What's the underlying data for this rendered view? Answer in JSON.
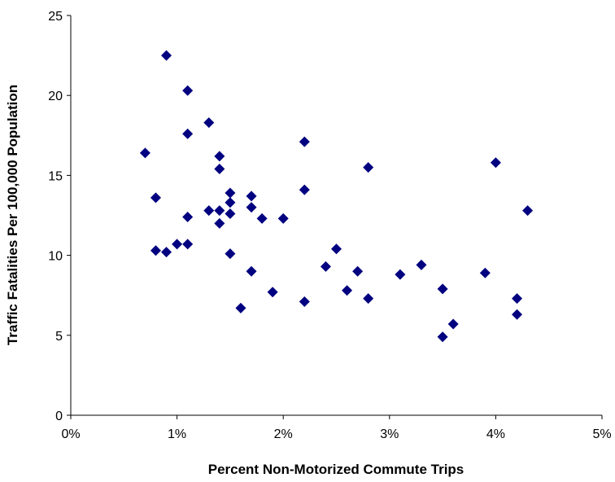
{
  "chart_data": {
    "type": "scatter",
    "title": "",
    "xlabel": "Percent Non-Motorized Commute Trips",
    "ylabel": "Traffic Fatalities Per 100,000 Population",
    "xlim": [
      0,
      5
    ],
    "ylim": [
      0,
      25
    ],
    "x_ticks": [
      "0%",
      "1%",
      "2%",
      "3%",
      "4%",
      "5%"
    ],
    "y_ticks": [
      "0",
      "5",
      "10",
      "15",
      "20",
      "25"
    ],
    "grid": false,
    "legend": "none",
    "marker": "diamond",
    "marker_color": "#000080",
    "series": [
      {
        "points": [
          [
            0.7,
            16.4
          ],
          [
            0.8,
            13.6
          ],
          [
            0.8,
            10.3
          ],
          [
            0.9,
            22.5
          ],
          [
            0.9,
            10.2
          ],
          [
            1.0,
            10.7
          ],
          [
            1.1,
            20.3
          ],
          [
            1.1,
            17.6
          ],
          [
            1.1,
            12.4
          ],
          [
            1.1,
            10.7
          ],
          [
            1.3,
            18.3
          ],
          [
            1.3,
            12.8
          ],
          [
            1.4,
            16.2
          ],
          [
            1.4,
            15.4
          ],
          [
            1.4,
            12.8
          ],
          [
            1.4,
            12.0
          ],
          [
            1.5,
            13.9
          ],
          [
            1.5,
            13.3
          ],
          [
            1.5,
            12.6
          ],
          [
            1.5,
            10.1
          ],
          [
            1.6,
            6.7
          ],
          [
            1.7,
            13.7
          ],
          [
            1.7,
            13.0
          ],
          [
            1.7,
            9.0
          ],
          [
            1.8,
            12.3
          ],
          [
            1.9,
            7.7
          ],
          [
            2.0,
            12.3
          ],
          [
            2.2,
            17.1
          ],
          [
            2.2,
            14.1
          ],
          [
            2.2,
            7.1
          ],
          [
            2.4,
            9.3
          ],
          [
            2.5,
            10.4
          ],
          [
            2.6,
            7.8
          ],
          [
            2.7,
            9.0
          ],
          [
            2.8,
            15.5
          ],
          [
            2.8,
            7.3
          ],
          [
            3.1,
            8.8
          ],
          [
            3.3,
            9.4
          ],
          [
            3.5,
            7.9
          ],
          [
            3.5,
            4.9
          ],
          [
            3.6,
            5.7
          ],
          [
            3.9,
            8.9
          ],
          [
            4.0,
            15.8
          ],
          [
            4.2,
            7.3
          ],
          [
            4.2,
            6.3
          ],
          [
            4.3,
            12.8
          ]
        ]
      }
    ]
  }
}
